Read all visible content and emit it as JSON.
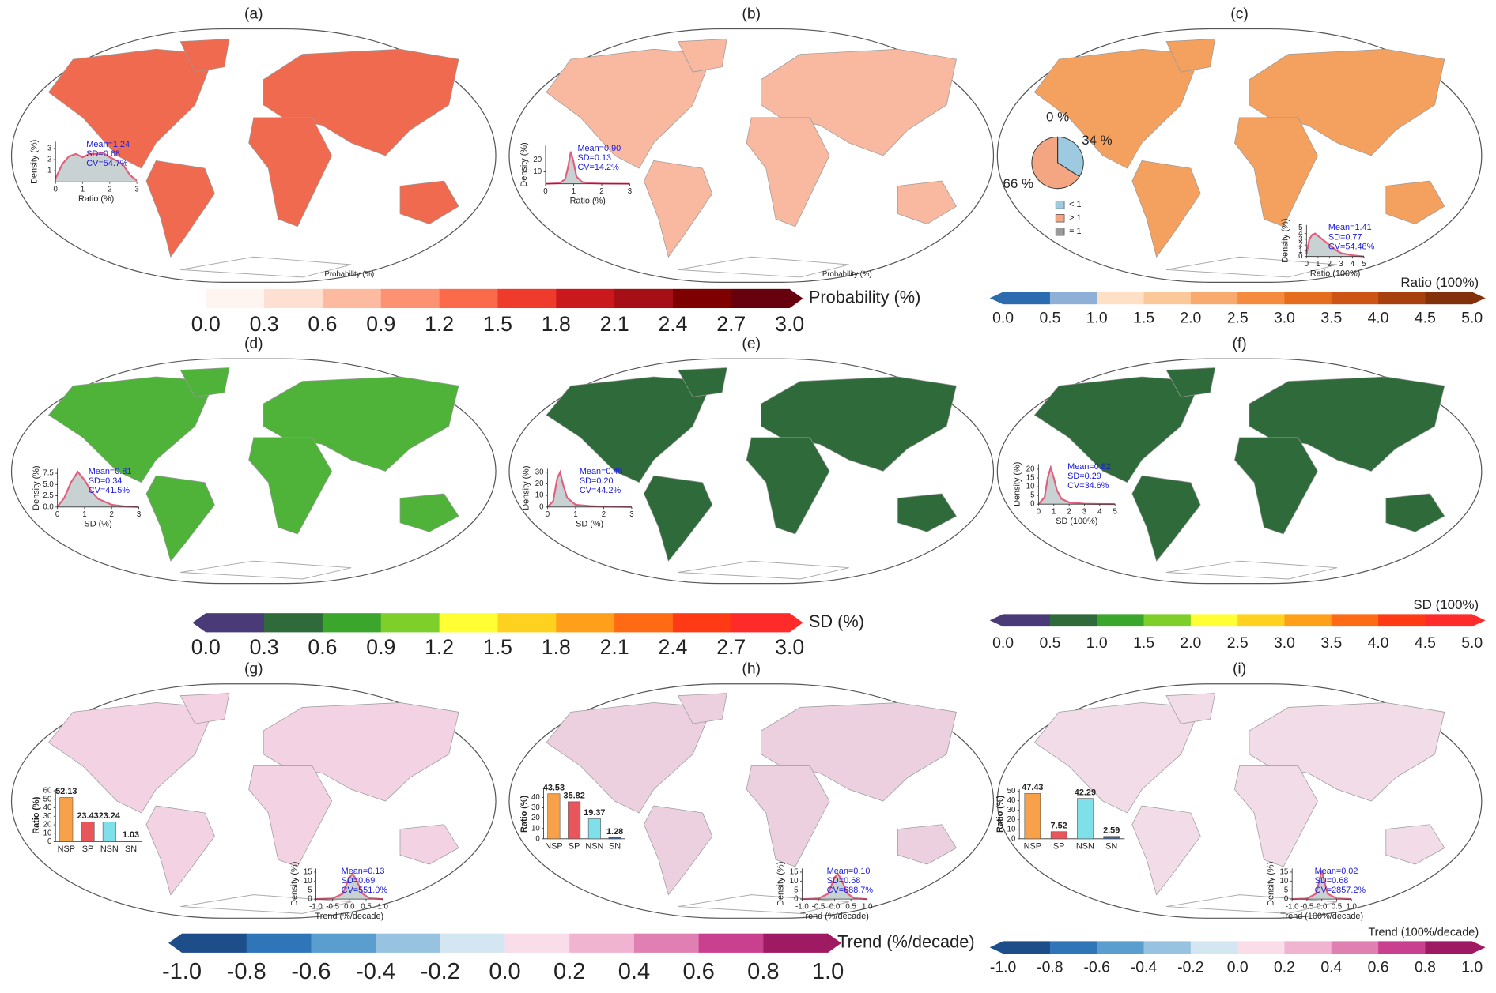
{
  "panels": [
    {
      "label": "(a)",
      "color": "#ef6a4f",
      "note": "Probability (%)",
      "inset": {
        "type": "density",
        "color": "#e0607e",
        "x": [
          0,
          0.25,
          0.5,
          0.75,
          1,
          1.25,
          1.5,
          1.75,
          2,
          2.25,
          2.5,
          2.75,
          3
        ],
        "values": [
          0.3,
          1.6,
          2.3,
          2.5,
          2.2,
          2.5,
          2.5,
          2.6,
          2.2,
          1.9,
          1.5,
          0.6,
          0.1
        ],
        "xlim": [
          0,
          3
        ],
        "ylim": [
          0,
          3.6
        ],
        "xticks": [
          0,
          1,
          2,
          3
        ],
        "yticks": [
          1,
          2,
          3
        ],
        "xlabel": "Ratio (%)",
        "ylabel": "Density (%)",
        "stats": [
          "Mean=1.24",
          "SD=0.68",
          "CV=54.7%"
        ]
      }
    },
    {
      "label": "(b)",
      "color": "#f8b9a0",
      "note": "Probability (%)",
      "inset": {
        "type": "density",
        "color": "#e0607e",
        "x": [
          0,
          0.5,
          0.7,
          0.8,
          0.9,
          1.0,
          1.1,
          1.3,
          1.6,
          2,
          3
        ],
        "values": [
          0,
          0.5,
          4,
          14,
          27,
          18,
          6,
          1.5,
          0.5,
          0.2,
          0
        ],
        "xlim": [
          0,
          3
        ],
        "ylim": [
          0,
          32
        ],
        "xticks": [
          0,
          1,
          2,
          3
        ],
        "yticks": [
          10,
          20
        ],
        "xlabel": "Ratio (%)",
        "ylabel": "Density (%)",
        "stats": [
          "Mean=0.90",
          "SD=0.13",
          "CV=14.2%"
        ]
      }
    },
    {
      "label": "(c)",
      "color": "#f4a15f",
      "inset": {
        "type": "density",
        "color": "#e0607e",
        "x": [
          0,
          0.25,
          0.5,
          0.75,
          1,
          1.5,
          2,
          2.5,
          3,
          4,
          5
        ],
        "values": [
          0.5,
          3,
          3.8,
          4,
          3.6,
          2.8,
          2,
          1.2,
          0.6,
          0.2,
          0
        ],
        "xlim": [
          0,
          5
        ],
        "ylim": [
          0,
          5.5
        ],
        "xticks": [
          0,
          1,
          2,
          3,
          4,
          5
        ],
        "yticks": [
          0,
          1,
          2,
          3,
          4,
          5
        ],
        "xlabel": "Ratio (100%)",
        "ylabel": "Density (%)",
        "stats": [
          "Mean=1.41",
          "SD=0.77",
          "CV=54.48%"
        ]
      },
      "pie": {
        "type": "pie",
        "categories": [
          "< 1",
          "> 1",
          "= 1"
        ],
        "values": [
          34,
          66,
          0
        ],
        "value_labels": [
          "34 %",
          "66 %",
          "0 %"
        ],
        "colors": [
          "#9ecae1",
          "#f4a582",
          "#9a9a9a"
        ]
      }
    },
    {
      "label": "(d)",
      "color": "#4fb33a",
      "inset": {
        "type": "density",
        "color": "#e0607e",
        "x": [
          0,
          0.25,
          0.5,
          0.75,
          1,
          1.25,
          1.5,
          2,
          2.5,
          3
        ],
        "values": [
          0.1,
          2,
          5.5,
          7.8,
          6,
          3.5,
          1.8,
          0.5,
          0.1,
          0
        ],
        "xlim": [
          0,
          3
        ],
        "ylim": [
          0,
          8.5
        ],
        "xticks": [
          0,
          1,
          2,
          3
        ],
        "yticks": [
          {
            "value": 0,
            "label": "0.0"
          },
          {
            "value": 2.5,
            "label": "2.5"
          },
          {
            "value": 5,
            "label": "5.0"
          },
          {
            "value": 7.5,
            "label": "7.5"
          }
        ],
        "xlabel": "SD (%)",
        "ylabel": "Density (%)",
        "stats": [
          "Mean=0.81",
          "SD=0.34",
          "CV=41.5%"
        ]
      }
    },
    {
      "label": "(e)",
      "color": "#2f6b3a",
      "inset": {
        "type": "density",
        "color": "#e0607e",
        "x": [
          0,
          0.2,
          0.35,
          0.45,
          0.55,
          0.7,
          1,
          1.5,
          2,
          3
        ],
        "values": [
          0,
          5,
          25,
          30,
          20,
          8,
          2,
          0.8,
          0.3,
          0
        ],
        "xlim": [
          0,
          3
        ],
        "ylim": [
          0,
          33
        ],
        "xticks": [
          0,
          1,
          2,
          3
        ],
        "yticks": [
          0,
          10,
          20,
          30
        ],
        "xlabel": "SD (%)",
        "ylabel": "Density (%)",
        "stats": [
          "Mean=0.45",
          "SD=0.20",
          "CV=44.2%"
        ]
      }
    },
    {
      "label": "(f)",
      "color": "#2f6b3a",
      "inset": {
        "type": "density",
        "color": "#e0607e",
        "x": [
          0,
          0.4,
          0.6,
          0.8,
          1,
          1.2,
          1.5,
          2,
          3,
          5
        ],
        "values": [
          0,
          4,
          15,
          21,
          15,
          8,
          3,
          1,
          0.2,
          0
        ],
        "xlim": [
          0,
          5
        ],
        "ylim": [
          0,
          23
        ],
        "xticks": [
          0,
          1,
          2,
          3,
          4,
          5
        ],
        "yticks": [
          0,
          5,
          10,
          15,
          20
        ],
        "xlabel": "SD (100%)",
        "ylabel": "Density (%)",
        "stats": [
          "Mean=0.82",
          "SD=0.29",
          "CV=34.6%"
        ]
      }
    },
    {
      "label": "(g)",
      "color": "#f3d3e3",
      "inset": {
        "type": "density",
        "color": "#e0607e",
        "x": [
          -1,
          -0.5,
          -0.2,
          0,
          0.1,
          0.2,
          0.4,
          0.6,
          1
        ],
        "values": [
          0,
          0.3,
          3,
          12,
          14,
          11,
          3,
          0.5,
          0
        ],
        "xlim": [
          -1,
          1
        ],
        "ylim": [
          0,
          17
        ],
        "xticks": [
          {
            "value": -1,
            "label": "-1.0"
          },
          {
            "value": -0.5,
            "label": "-0.5"
          },
          {
            "value": 0,
            "label": "0.0"
          },
          {
            "value": 0.5,
            "label": "0.5"
          },
          {
            "value": 1,
            "label": "1.0"
          }
        ],
        "yticks": [
          0,
          5,
          10,
          15
        ],
        "xlabel": "Trend (%/decade)",
        "ylabel": "Density (%)",
        "stats": [
          "Mean=0.13",
          "SD=0.69",
          "CV=551.0%"
        ]
      },
      "bars": {
        "type": "bar",
        "categories": [
          "NSP",
          "SP",
          "NSN",
          "SN"
        ],
        "values": [
          52.13,
          23.43,
          23.24,
          1.03
        ],
        "colors": [
          "#f7a24a",
          "#e8555a",
          "#7fe0ea",
          "#3b5fb0"
        ],
        "ylim": [
          0,
          62
        ],
        "yticks": [
          0,
          10,
          20,
          30,
          40,
          50,
          60
        ],
        "ylabel": "Ratio (%)"
      }
    },
    {
      "label": "(h)",
      "color": "#ecd0e0",
      "inset": {
        "type": "density",
        "color": "#e0607e",
        "x": [
          -1,
          -0.5,
          -0.2,
          0,
          0.1,
          0.2,
          0.4,
          0.6,
          1
        ],
        "values": [
          0,
          0.3,
          3,
          12,
          14,
          11,
          3,
          0.5,
          0
        ],
        "xlim": [
          -1,
          1
        ],
        "ylim": [
          0,
          17
        ],
        "xticks": [
          {
            "value": -1,
            "label": "-1.0"
          },
          {
            "value": -0.5,
            "label": "-0.5"
          },
          {
            "value": 0,
            "label": "0.0"
          },
          {
            "value": 0.5,
            "label": "0.5"
          },
          {
            "value": 1,
            "label": "1.0"
          }
        ],
        "yticks": [
          0,
          5,
          10,
          15
        ],
        "xlabel": "Trend (%/decade)",
        "ylabel": "Density (%)",
        "stats": [
          "Mean=0.10",
          "SD=0.68",
          "CV=688.7%"
        ]
      },
      "bars": {
        "type": "bar",
        "categories": [
          "NSP",
          "SP",
          "NSN",
          "SN"
        ],
        "values": [
          43.53,
          35.82,
          19.37,
          1.28
        ],
        "colors": [
          "#f7a24a",
          "#e8555a",
          "#7fe0ea",
          "#3b5fb0"
        ],
        "ylim": [
          0,
          48
        ],
        "yticks": [
          0,
          10,
          20,
          30,
          40
        ],
        "ylabel": "Ratio (%)"
      }
    },
    {
      "label": "(i)",
      "color": "#f1dce8",
      "inset": {
        "type": "density",
        "color": "#e0607e",
        "x": [
          -1,
          -0.5,
          -0.2,
          -0.1,
          0,
          0.1,
          0.2,
          0.5,
          1
        ],
        "values": [
          0,
          0.3,
          3,
          9,
          16,
          9,
          3,
          0.3,
          0
        ],
        "xlim": [
          -1,
          1
        ],
        "ylim": [
          0,
          17
        ],
        "xticks": [
          {
            "value": -1,
            "label": "-1.0"
          },
          {
            "value": -0.5,
            "label": "-0.5"
          },
          {
            "value": 0,
            "label": "0.0"
          },
          {
            "value": 0.5,
            "label": "0.5"
          },
          {
            "value": 1,
            "label": "1.0"
          }
        ],
        "yticks": [
          0,
          5,
          10,
          15
        ],
        "xlabel": "Trend (100%/decade)",
        "ylabel": "Density (%)",
        "stats": [
          "Mean=0.02",
          "SD=0.68",
          "CV=2857.2%"
        ]
      },
      "bars": {
        "type": "bar",
        "categories": [
          "NSP",
          "SP",
          "NSN",
          "SN"
        ],
        "values": [
          47.43,
          7.52,
          42.29,
          2.59
        ],
        "colors": [
          "#f7a24a",
          "#e8555a",
          "#7fe0ea",
          "#3b5fb0"
        ],
        "ylim": [
          0,
          52
        ],
        "yticks": [
          0,
          10,
          20,
          30,
          40,
          50
        ],
        "ylabel": "Ratio (%)"
      }
    }
  ],
  "colorbars": [
    {
      "label": "Probability (%)",
      "extend": "max",
      "colors": [
        "#fff5f0",
        "#fee0d2",
        "#fcbba1",
        "#fc9272",
        "#fb6a4a",
        "#ef3b2c",
        "#cb181d",
        "#a50f15",
        "#7f0000",
        "#67000d"
      ],
      "ticks": [
        "0.0",
        "0.3",
        "0.6",
        "0.9",
        "1.2",
        "1.5",
        "1.8",
        "2.1",
        "2.4",
        "2.7",
        "3.0"
      ]
    },
    {
      "label": "Ratio (100%)",
      "extend": "both",
      "colors": [
        "#2b6cb0",
        "#8fb0d6",
        "#fde0c5",
        "#fbc89a",
        "#f9aa6e",
        "#f48b3f",
        "#e56d1e",
        "#cc5414",
        "#a8400e",
        "#82310a"
      ],
      "ticks": [
        "0.0",
        "0.5",
        "1.0",
        "1.5",
        "2.0",
        "2.5",
        "3.0",
        "3.5",
        "4.0",
        "4.5",
        "5.0"
      ]
    },
    {
      "label": "SD (%)",
      "extend": "both",
      "colors": [
        "#4b3a78",
        "#2f6b3a",
        "#3aa62c",
        "#7fcf2a",
        "#ffff33",
        "#ffd21f",
        "#ff9f1a",
        "#ff6b14",
        "#ff3a14",
        "#ff2a2a"
      ],
      "ticks": [
        "0.0",
        "0.3",
        "0.6",
        "0.9",
        "1.2",
        "1.5",
        "1.8",
        "2.1",
        "2.4",
        "2.7",
        "3.0"
      ]
    },
    {
      "label": "SD (100%)",
      "extend": "both",
      "colors": [
        "#4b3a78",
        "#2f6b3a",
        "#3aa62c",
        "#7fcf2a",
        "#ffff33",
        "#ffd21f",
        "#ff9f1a",
        "#ff6b14",
        "#ff3a14",
        "#ff2a2a"
      ],
      "ticks": [
        "0.0",
        "0.5",
        "1.0",
        "1.5",
        "2.0",
        "2.5",
        "3.0",
        "3.5",
        "4.0",
        "4.5",
        "5.0"
      ]
    },
    {
      "label": "Trend (%/decade)",
      "extend": "both",
      "colors": [
        "#1d4e89",
        "#2f76b8",
        "#5a9dcf",
        "#97c3e0",
        "#d4e6f1",
        "#f9dde9",
        "#f0b4d2",
        "#e07fb2",
        "#c9418e",
        "#9e1a63"
      ],
      "ticks": [
        "-1.0",
        "-0.8",
        "-0.6",
        "-0.4",
        "-0.2",
        "0.0",
        "0.2",
        "0.4",
        "0.6",
        "0.8",
        "1.0"
      ]
    },
    {
      "label": "Trend (100%/decade)",
      "extend": "both",
      "colors": [
        "#1d4e89",
        "#2f76b8",
        "#5a9dcf",
        "#97c3e0",
        "#d4e6f1",
        "#f9dde9",
        "#f0b4d2",
        "#e07fb2",
        "#c9418e",
        "#9e1a63"
      ],
      "ticks": [
        "-1.0",
        "-0.8",
        "-0.6",
        "-0.4",
        "-0.2",
        "0.0",
        "0.2",
        "0.4",
        "0.6",
        "0.8",
        "1.0"
      ]
    }
  ]
}
